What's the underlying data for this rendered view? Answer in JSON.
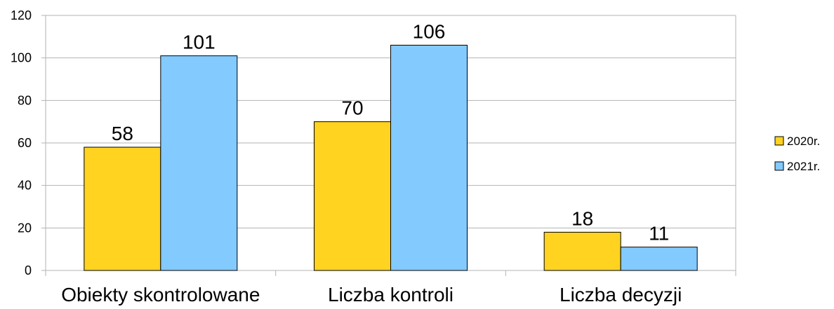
{
  "chart_data": {
    "type": "bar",
    "categories": [
      "Obiekty skontrolowane",
      "Liczba kontroli",
      "Liczba decyzji"
    ],
    "series": [
      {
        "name": "2020r.",
        "values": [
          58,
          70,
          18
        ],
        "color": "#ffd320"
      },
      {
        "name": "2021r.",
        "values": [
          101,
          106,
          11
        ],
        "color": "#83caff"
      }
    ],
    "ylim": [
      0,
      120
    ],
    "yticks": [
      0,
      20,
      40,
      60,
      80,
      100,
      120
    ],
    "grid": true,
    "legend": "right",
    "data_labels": true
  }
}
